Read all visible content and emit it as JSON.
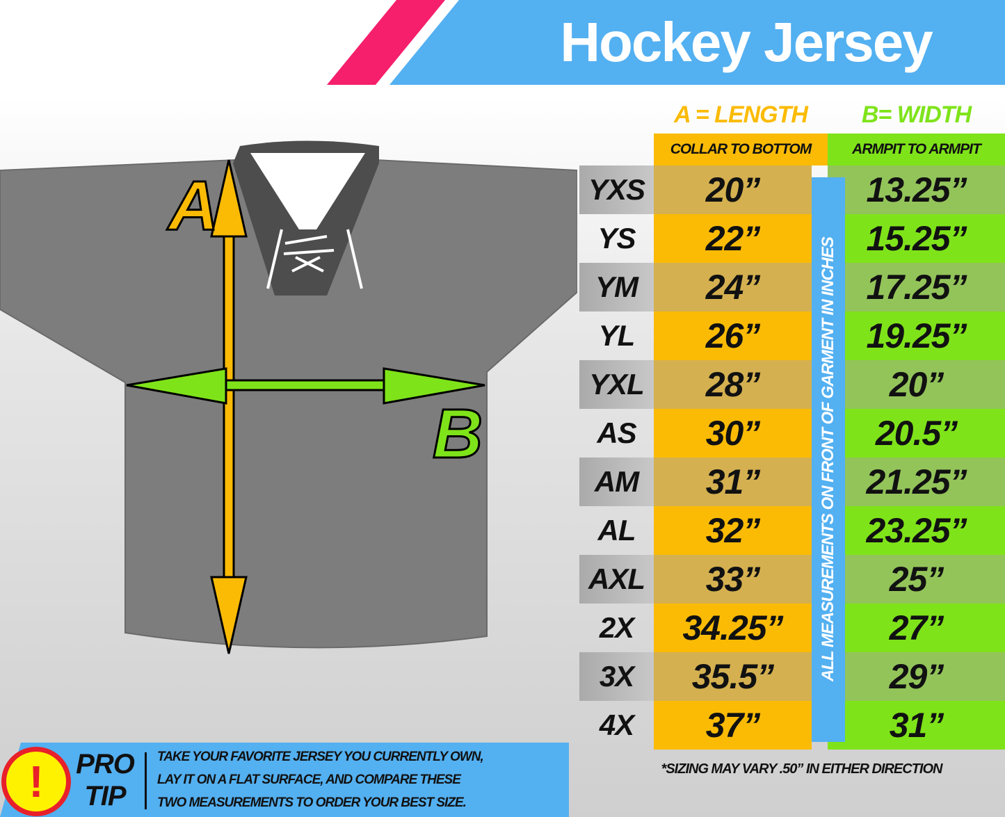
{
  "title": "Hockey Jersey",
  "colors": {
    "length": "#fbbb05",
    "width": "#7fe31a",
    "accent_blue": "#53b0f1",
    "accent_pink": "#f51f6b"
  },
  "diagram": {
    "label_a": "A",
    "label_b": "B"
  },
  "table": {
    "length_header": "A = LENGTH",
    "length_sub": "COLLAR TO BOTTOM",
    "width_header": "B= WIDTH",
    "width_sub": "ARMPIT TO ARMPIT",
    "side_note": "ALL MEASUREMENTS ON FRONT OF GARMENT IN INCHES",
    "rows": [
      {
        "size": "YXS",
        "length": "20”",
        "width": "13.25”"
      },
      {
        "size": "YS",
        "length": "22”",
        "width": "15.25”"
      },
      {
        "size": "YM",
        "length": "24”",
        "width": "17.25”"
      },
      {
        "size": "YL",
        "length": "26”",
        "width": "19.25”"
      },
      {
        "size": "YXL",
        "length": "28”",
        "width": "20”"
      },
      {
        "size": "AS",
        "length": "30”",
        "width": "20.5”"
      },
      {
        "size": "AM",
        "length": "31”",
        "width": "21.25”"
      },
      {
        "size": "AL",
        "length": "32”",
        "width": "23.25”"
      },
      {
        "size": "AXL",
        "length": "33”",
        "width": "25”"
      },
      {
        "size": "2X",
        "length": "34.25”",
        "width": "27”"
      },
      {
        "size": "3X",
        "length": "35.5”",
        "width": "29”"
      },
      {
        "size": "4X",
        "length": "37”",
        "width": "31”"
      }
    ]
  },
  "tip": {
    "icon": "exclamation-icon",
    "symbol": "!",
    "label_1": "PRO",
    "label_2": "TIP",
    "lines": [
      "TAKE YOUR FAVORITE JERSEY YOU CURRENTLY OWN,",
      "LAY IT ON A FLAT SURFACE, AND COMPARE THESE",
      "TWO MEASUREMENTS TO ORDER YOUR BEST SIZE."
    ]
  },
  "note": "*SIZING MAY VARY .50” IN EITHER DIRECTION"
}
